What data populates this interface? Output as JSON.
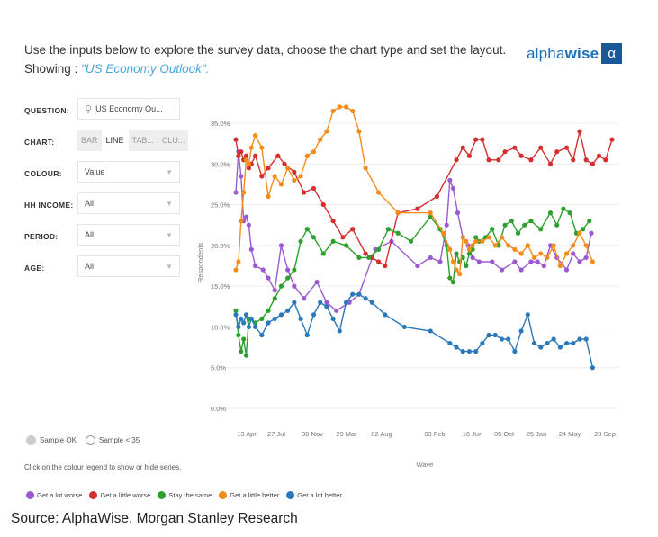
{
  "intro": {
    "text": "Use the inputs below to explore the survey data, choose the chart type and set the layout. Showing : ",
    "showing": "\"US Economy Outlook\"."
  },
  "logo": {
    "text_light": "alpha",
    "text_bold": "wise",
    "mark": "α"
  },
  "controls": {
    "question_label": "QUESTION:",
    "question_value": "US Economy Ou...",
    "chart_label": "CHART:",
    "chart_types": [
      "BAR",
      "LINE",
      "TAB...",
      "CLU..."
    ],
    "chart_active": "LINE",
    "colour_label": "COLOUR:",
    "colour_value": "Value",
    "hh_income_label": "HH INCOME:",
    "hh_income_value": "All",
    "period_label": "PERIOD:",
    "period_value": "All",
    "age_label": "AGE:",
    "age_value": "All"
  },
  "sample": {
    "ok": "Sample OK",
    "low": "Sample < 35"
  },
  "hint": "Click on the colour legend to show or hide series.",
  "source": "Source: AlphaWise, Morgan Stanley Research",
  "colors": {
    "purple": "#9b59d0",
    "red": "#d32f2f",
    "green": "#2ca02c",
    "orange": "#f28c1b",
    "blue": "#2a78b9"
  },
  "chart_data": {
    "type": "line",
    "xlabel": "Wave",
    "ylabel": "Respondents",
    "ylim": [
      0,
      35
    ],
    "yticks": [
      "0.0%",
      "5.0%",
      "10.0%",
      "15.0%",
      "20.0%",
      "25.0%",
      "30.0%",
      "35.0%"
    ],
    "xtick_labels": [
      "13 Apr",
      "27 Jul",
      "30 Nov",
      "29 Mar",
      "02 Aug",
      "03 Feb",
      "16 Jun",
      "05 Oct",
      "25 Jan",
      "24 May",
      "28 Sep"
    ],
    "grid": true,
    "legend_position": "bottom",
    "series": [
      {
        "name": "Get a lot worse",
        "color": "#9b59d0",
        "points": [
          [
            0,
            26.5
          ],
          [
            0.4,
            31.5
          ],
          [
            0.8,
            28.5
          ],
          [
            1.2,
            23
          ],
          [
            1.6,
            23.5
          ],
          [
            2.0,
            22.5
          ],
          [
            2.4,
            19.5
          ],
          [
            3.0,
            17.5
          ],
          [
            4.2,
            17
          ],
          [
            5.0,
            16
          ],
          [
            6.0,
            14.5
          ],
          [
            7.0,
            20
          ],
          [
            8.0,
            17
          ],
          [
            9.0,
            15
          ],
          [
            10.5,
            13.5
          ],
          [
            12.5,
            15.5
          ],
          [
            14.0,
            13
          ],
          [
            15.5,
            12
          ],
          [
            17.5,
            13
          ],
          [
            19.0,
            14
          ],
          [
            21.5,
            19.5
          ],
          [
            24.0,
            20.5
          ],
          [
            28.0,
            17.5
          ],
          [
            30.0,
            18.5
          ],
          [
            31.5,
            18
          ],
          [
            32.5,
            22.5
          ],
          [
            33.0,
            28
          ],
          [
            33.5,
            27
          ],
          [
            34.2,
            24
          ],
          [
            35.0,
            21
          ],
          [
            35.8,
            20
          ],
          [
            36.5,
            18.5
          ],
          [
            37.5,
            18
          ],
          [
            39.5,
            18
          ],
          [
            41.0,
            17
          ],
          [
            43.0,
            18
          ],
          [
            44.0,
            17
          ],
          [
            45.5,
            18
          ],
          [
            46.5,
            18
          ],
          [
            47.5,
            17.5
          ],
          [
            48.5,
            20
          ],
          [
            49.5,
            18.5
          ],
          [
            51.0,
            17
          ],
          [
            52.0,
            19
          ],
          [
            53.0,
            18
          ],
          [
            54.0,
            18.5
          ],
          [
            54.8,
            21.5
          ]
        ]
      },
      {
        "name": "Get a little worse",
        "color": "#d32f2f",
        "points": [
          [
            0,
            33
          ],
          [
            0.4,
            31
          ],
          [
            0.8,
            31.5
          ],
          [
            1.2,
            30.5
          ],
          [
            1.6,
            31
          ],
          [
            2.0,
            29.5
          ],
          [
            2.4,
            30
          ],
          [
            3.0,
            31
          ],
          [
            4.0,
            28.5
          ],
          [
            5.0,
            29.5
          ],
          [
            6.5,
            31
          ],
          [
            7.5,
            30
          ],
          [
            9.0,
            29
          ],
          [
            10.5,
            26.5
          ],
          [
            12.0,
            27
          ],
          [
            13.5,
            25
          ],
          [
            15.0,
            23
          ],
          [
            16.5,
            21
          ],
          [
            18.0,
            22
          ],
          [
            20.0,
            19
          ],
          [
            21.0,
            18.5
          ],
          [
            22.0,
            18
          ],
          [
            23.0,
            17.5
          ],
          [
            25.0,
            24
          ],
          [
            28.0,
            24.5
          ],
          [
            31.0,
            26
          ],
          [
            34.0,
            30.5
          ],
          [
            35.0,
            32
          ],
          [
            36.0,
            31
          ],
          [
            37.0,
            33
          ],
          [
            38.0,
            33
          ],
          [
            39.0,
            30.5
          ],
          [
            40.5,
            30.5
          ],
          [
            41.5,
            31.5
          ],
          [
            43.0,
            32
          ],
          [
            44.0,
            31
          ],
          [
            45.5,
            30.5
          ],
          [
            47.0,
            32
          ],
          [
            48.5,
            30
          ],
          [
            49.5,
            31.5
          ],
          [
            51.0,
            32
          ],
          [
            52.0,
            30.5
          ],
          [
            53.0,
            34
          ],
          [
            54.0,
            30.5
          ],
          [
            55.0,
            30
          ],
          [
            56.0,
            31
          ],
          [
            57.0,
            30.5
          ],
          [
            58.0,
            33
          ]
        ]
      },
      {
        "name": "Stay the same",
        "color": "#2ca02c",
        "points": [
          [
            0,
            12
          ],
          [
            0.4,
            9
          ],
          [
            0.8,
            7
          ],
          [
            1.2,
            8.5
          ],
          [
            1.6,
            6.5
          ],
          [
            2.0,
            11
          ],
          [
            2.4,
            11
          ],
          [
            3.0,
            10.5
          ],
          [
            4.0,
            11
          ],
          [
            5.0,
            12
          ],
          [
            6.0,
            13.5
          ],
          [
            7.0,
            15
          ],
          [
            8.0,
            16
          ],
          [
            9.0,
            17
          ],
          [
            10.0,
            20.5
          ],
          [
            11.0,
            22
          ],
          [
            12.0,
            21
          ],
          [
            13.5,
            19
          ],
          [
            15.0,
            20.5
          ],
          [
            17.0,
            20
          ],
          [
            19.0,
            18.5
          ],
          [
            20.5,
            18.5
          ],
          [
            22.0,
            19.5
          ],
          [
            23.5,
            22
          ],
          [
            25.0,
            21.5
          ],
          [
            27.0,
            20.5
          ],
          [
            30.0,
            23.5
          ],
          [
            31.5,
            22
          ],
          [
            32.5,
            20
          ],
          [
            33.0,
            16
          ],
          [
            33.5,
            15.5
          ],
          [
            34.0,
            19
          ],
          [
            34.5,
            18
          ],
          [
            35.0,
            18.5
          ],
          [
            35.5,
            17.5
          ],
          [
            36.0,
            19
          ],
          [
            36.5,
            19.5
          ],
          [
            37.0,
            21
          ],
          [
            37.5,
            20.5
          ],
          [
            38.5,
            21
          ],
          [
            39.5,
            22
          ],
          [
            40.5,
            20
          ],
          [
            41.5,
            22.5
          ],
          [
            42.5,
            23
          ],
          [
            43.5,
            21.5
          ],
          [
            44.5,
            22.5
          ],
          [
            45.5,
            23
          ],
          [
            47.0,
            22
          ],
          [
            48.5,
            24
          ],
          [
            49.5,
            22.5
          ],
          [
            50.5,
            24.5
          ],
          [
            51.5,
            24
          ],
          [
            52.5,
            21.5
          ],
          [
            53.5,
            22
          ],
          [
            54.5,
            23
          ]
        ]
      },
      {
        "name": "Get a little better",
        "color": "#f28c1b",
        "points": [
          [
            0,
            17
          ],
          [
            0.4,
            18
          ],
          [
            0.8,
            23
          ],
          [
            1.2,
            26.5
          ],
          [
            1.6,
            30.5
          ],
          [
            2.0,
            30
          ],
          [
            2.4,
            32
          ],
          [
            3.0,
            33.5
          ],
          [
            4.0,
            32
          ],
          [
            5.0,
            26
          ],
          [
            6.0,
            28.5
          ],
          [
            7.0,
            27.5
          ],
          [
            8.0,
            29.5
          ],
          [
            9.0,
            28
          ],
          [
            10.0,
            28.5
          ],
          [
            11.0,
            31
          ],
          [
            12.0,
            31.5
          ],
          [
            13.0,
            33
          ],
          [
            14.0,
            34
          ],
          [
            15.0,
            36.5
          ],
          [
            16.0,
            37
          ],
          [
            17.0,
            37
          ],
          [
            18.0,
            36.5
          ],
          [
            19.0,
            34
          ],
          [
            20.0,
            29.5
          ],
          [
            22.0,
            26.5
          ],
          [
            25.0,
            24
          ],
          [
            30.0,
            24
          ],
          [
            32.0,
            21.5
          ],
          [
            33.0,
            19.5
          ],
          [
            33.5,
            18
          ],
          [
            34.0,
            17
          ],
          [
            34.5,
            16.5
          ],
          [
            35.0,
            21
          ],
          [
            35.5,
            20.5
          ],
          [
            36.0,
            19.5
          ],
          [
            36.5,
            20
          ],
          [
            37.0,
            20.5
          ],
          [
            38.0,
            20.5
          ],
          [
            39.0,
            21
          ],
          [
            40.0,
            20
          ],
          [
            41.0,
            21
          ],
          [
            42.0,
            20
          ],
          [
            43.0,
            19.5
          ],
          [
            44.0,
            19
          ],
          [
            45.0,
            20
          ],
          [
            46.0,
            18.5
          ],
          [
            47.0,
            19
          ],
          [
            48.0,
            18.5
          ],
          [
            49.0,
            20
          ],
          [
            50.0,
            17.5
          ],
          [
            51.0,
            19
          ],
          [
            52.0,
            20
          ],
          [
            53.0,
            21.5
          ],
          [
            54.0,
            20
          ],
          [
            55.0,
            18
          ]
        ]
      },
      {
        "name": "Get a lot better",
        "color": "#2a78b9",
        "points": [
          [
            0,
            11.5
          ],
          [
            0.4,
            10
          ],
          [
            0.8,
            11
          ],
          [
            1.2,
            10.5
          ],
          [
            1.6,
            11.5
          ],
          [
            2.0,
            10
          ],
          [
            2.4,
            11
          ],
          [
            3.0,
            10
          ],
          [
            4.0,
            9
          ],
          [
            5.0,
            10.5
          ],
          [
            6.0,
            11
          ],
          [
            7.0,
            11.5
          ],
          [
            8.0,
            12
          ],
          [
            9.0,
            13
          ],
          [
            10.0,
            11
          ],
          [
            11.0,
            9
          ],
          [
            12.0,
            11.5
          ],
          [
            13.0,
            13
          ],
          [
            14.0,
            12.5
          ],
          [
            15.0,
            11
          ],
          [
            16.0,
            9.5
          ],
          [
            17.0,
            13
          ],
          [
            18.0,
            14
          ],
          [
            19.0,
            14
          ],
          [
            20.0,
            13.5
          ],
          [
            21.0,
            13
          ],
          [
            23.0,
            11.5
          ],
          [
            26.0,
            10
          ],
          [
            30.0,
            9.5
          ],
          [
            33.0,
            8
          ],
          [
            34.0,
            7.5
          ],
          [
            35.0,
            7
          ],
          [
            36.0,
            7
          ],
          [
            37.0,
            7
          ],
          [
            38.0,
            8
          ],
          [
            39.0,
            9
          ],
          [
            40.0,
            9
          ],
          [
            41.0,
            8.5
          ],
          [
            42.0,
            8.5
          ],
          [
            43.0,
            7
          ],
          [
            44.0,
            9.5
          ],
          [
            45.0,
            11.5
          ],
          [
            46.0,
            8
          ],
          [
            47.0,
            7.5
          ],
          [
            48.0,
            8
          ],
          [
            49.0,
            8.5
          ],
          [
            50.0,
            7.5
          ],
          [
            51.0,
            8
          ],
          [
            52.0,
            8
          ],
          [
            53.0,
            8.5
          ],
          [
            54.0,
            8.5
          ],
          [
            55.0,
            5
          ]
        ]
      }
    ]
  }
}
